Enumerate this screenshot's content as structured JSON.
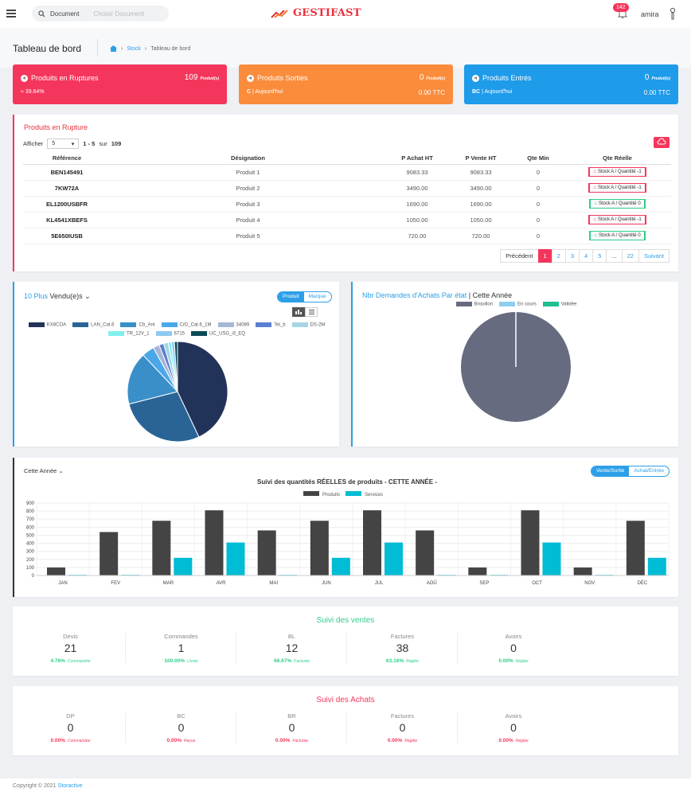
{
  "topbar": {
    "search_scope": "Document",
    "search_placeholder": "Choisir Document",
    "brand": "GESTIFAST",
    "notifications": "142",
    "username": "amira"
  },
  "page": {
    "title": "Tableau de bord",
    "breadcrumb": [
      "Stock",
      "Tableau de bord"
    ]
  },
  "stats": [
    {
      "title": "Produits en Ruptures",
      "value": "109",
      "unit": "Produit(s)",
      "sub": "39.64%",
      "sub_right": "",
      "color": "#f5365c"
    },
    {
      "title": "Produits Sorties",
      "value": "0",
      "unit": "Produit(s)",
      "sub_prefix": "C",
      "sub": "Aujourd'hui",
      "sub_right": "0.00 TTC",
      "color": "#fb8c3c"
    },
    {
      "title": "Produits Entrés",
      "value": "0",
      "unit": "Produit(s)",
      "sub_prefix": "BC",
      "sub": "Aujourd'hui",
      "sub_right": "0.00 TTC",
      "color": "#1e9be9"
    }
  ],
  "rupture": {
    "title": "Produits en Rupture",
    "show_label": "Afficher",
    "page_size": "5",
    "range": "1 - 5",
    "of_label": "sur",
    "total": "109",
    "columns": [
      "Référence",
      "Désignation",
      "P Achat HT",
      "P Vente HT",
      "Qte Min",
      "Qte Réelle"
    ],
    "rows": [
      {
        "ref": "BEN145491",
        "des": "Produit 1",
        "pa": "9083.33",
        "pv": "9083.33",
        "qmin": "0",
        "qr": "Stock A / Quantité -1",
        "st": "red"
      },
      {
        "ref": "7KW72A",
        "des": "Produit 2",
        "pa": "3490.00",
        "pv": "3490.00",
        "qmin": "0",
        "qr": "Stock A / Quantité -1",
        "st": "red"
      },
      {
        "ref": "EL1200USBFR",
        "des": "Produit 3",
        "pa": "1690.00",
        "pv": "1690.00",
        "qmin": "0",
        "qr": "Stock A / Quantité 0",
        "st": "green"
      },
      {
        "ref": "KL4541XBEFS",
        "des": "Produit 4",
        "pa": "1050.00",
        "pv": "1050.00",
        "qmin": "0",
        "qr": "Stock A / Quantité -1",
        "st": "red"
      },
      {
        "ref": "5E650IUSB",
        "des": "Produit 5",
        "pa": "720.00",
        "pv": "720.00",
        "qmin": "0",
        "qr": "Stock A / Quantité 0",
        "st": "green"
      }
    ],
    "pager": [
      "Précédent",
      "1",
      "2",
      "3",
      "4",
      "5",
      "...",
      "22",
      "Suivant"
    ]
  },
  "top_sold": {
    "title_a": "10 Plus",
    "title_b": "Vendu(e)s",
    "toggle": [
      "Produit",
      "Marque"
    ]
  },
  "demandes": {
    "title": "Nbr Demandes d'Achats Par état",
    "title_suffix": "Cette Année"
  },
  "suivi_chart": {
    "period": "Cette Année",
    "toggle": [
      "Vente/Sortie",
      "Achat/Entrée"
    ]
  },
  "chart_data": [
    {
      "type": "pie",
      "labels": [
        "KX8COA",
        "LAN_Cat.6",
        "Cb_Ant",
        "CrD_Cat.6_1M",
        "34089",
        "Tel_b",
        "DS-2M",
        "TR_12V_1",
        "6715",
        "UC_USG_i3_EQ"
      ],
      "values": [
        43,
        28,
        17,
        4,
        2,
        1.5,
        1.5,
        1,
        1,
        1
      ],
      "colors": [
        "#22335a",
        "#2a6496",
        "#3a8fc9",
        "#4aa8e8",
        "#a7b6d6",
        "#5b7fd1",
        "#a6d6e3",
        "#7ff0ef",
        "#8fc9f0",
        "#0d4957"
      ]
    },
    {
      "type": "pie",
      "labels": [
        "Brouillon",
        "En cours",
        "Validée"
      ],
      "values": [
        100,
        0,
        0
      ],
      "colors": [
        "#666b80",
        "#8ccfef",
        "#1fbf8f"
      ]
    },
    {
      "type": "bar",
      "title": "Suivi des quantités RÉELLES de produits - CETTE ANNÉE -",
      "categories": [
        "JAN",
        "FEV",
        "MAR",
        "AVR",
        "MAI",
        "JUN",
        "JUL",
        "AOÛ",
        "SEP",
        "OCT",
        "NOV",
        "DÉC"
      ],
      "series": [
        {
          "name": "Produits",
          "color": "#444444",
          "values": [
            100,
            540,
            680,
            810,
            560,
            680,
            810,
            560,
            100,
            810,
            100,
            680
          ]
        },
        {
          "name": "Services",
          "color": "#00bcd4",
          "values": [
            0,
            0,
            220,
            410,
            0,
            220,
            410,
            0,
            0,
            410,
            0,
            220
          ]
        }
      ],
      "ylim": [
        0,
        900
      ],
      "yticks": [
        "0",
        "100",
        "200",
        "300",
        "400",
        "500",
        "600",
        "700",
        "800",
        "900"
      ]
    }
  ],
  "ventes": {
    "title": "Suivi des ventes",
    "color": "#2dce89",
    "cols": [
      {
        "label": "Devis",
        "value": "21",
        "pct": "4.76%",
        "note": "Commandée"
      },
      {
        "label": "Commandes",
        "value": "1",
        "pct": "100.00%",
        "note": "Livrée"
      },
      {
        "label": "BL",
        "value": "12",
        "pct": "66.67%",
        "note": "Facturée"
      },
      {
        "label": "Factures",
        "value": "38",
        "pct": "63.16%",
        "note": "Réglée"
      },
      {
        "label": "Avoirs",
        "value": "0",
        "pct": "0.00%",
        "note": "Réglée"
      }
    ]
  },
  "achats": {
    "title": "Suivi des Achats",
    "color": "#f5365c",
    "cols": [
      {
        "label": "DP",
        "value": "0",
        "pct": "0.00%",
        "note": "Commandée"
      },
      {
        "label": "BC",
        "value": "0",
        "pct": "0.00%",
        "note": "Reçue"
      },
      {
        "label": "BR",
        "value": "0",
        "pct": "0.00%",
        "note": "Facturée"
      },
      {
        "label": "Factures",
        "value": "0",
        "pct": "0.00%",
        "note": "Réglée"
      },
      {
        "label": "Avoirs",
        "value": "0",
        "pct": "0.00%",
        "note": "Réglée"
      }
    ]
  },
  "footer": {
    "text": "Copyright © 2021",
    "link": "Storactive"
  }
}
